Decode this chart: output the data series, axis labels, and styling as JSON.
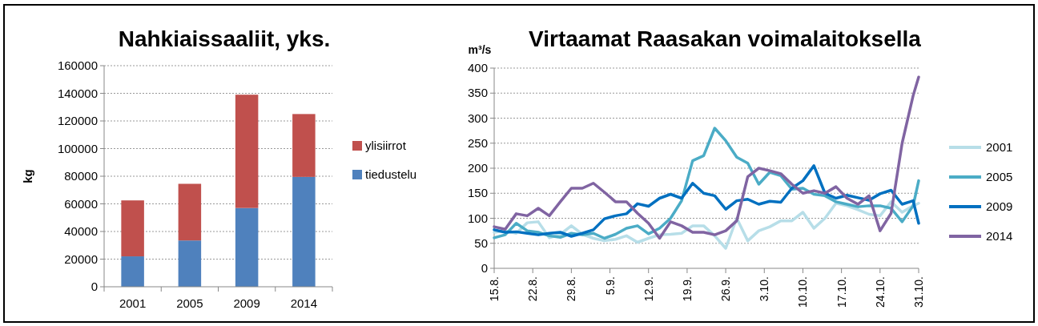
{
  "chart_data": [
    {
      "type": "bar",
      "title": "Nahkiaissaaliit, yks.",
      "ylabel": "kg",
      "categories": [
        "2001",
        "2005",
        "2009",
        "2014"
      ],
      "stacked": true,
      "series": [
        {
          "name": "tiedustelu",
          "color": "#4f81bd",
          "values": [
            22000,
            33500,
            57000,
            79500
          ]
        },
        {
          "name": "ylisiirrot",
          "color": "#c0504d",
          "values": [
            40500,
            41000,
            82000,
            45500
          ]
        }
      ],
      "ylim": [
        0,
        160000
      ],
      "yticks": [
        0,
        20000,
        40000,
        60000,
        80000,
        100000,
        120000,
        140000,
        160000
      ],
      "grid": "y",
      "legend": "right"
    },
    {
      "type": "line",
      "title": "Virtaamat Raasakan voimalaitoksella",
      "ylabel": "m³/s",
      "x": [
        "--08-15",
        "--08-17",
        "--08-19",
        "--08-21",
        "--08-23",
        "--08-25",
        "--08-27",
        "--08-29",
        "--08-31",
        "--09-02",
        "--09-04",
        "--09-06",
        "--09-08",
        "--09-10",
        "--09-12",
        "--09-14",
        "--09-16",
        "--09-18",
        "--09-20",
        "--09-22",
        "--09-24",
        "--09-26",
        "--09-28",
        "--09-30",
        "--10-02",
        "--10-04",
        "--10-06",
        "--10-08",
        "--10-10",
        "--10-12",
        "--10-14",
        "--10-16",
        "--10-18",
        "--10-20",
        "--10-22",
        "--10-24",
        "--10-26",
        "--10-28",
        "--10-30",
        "--10-31"
      ],
      "series": [
        {
          "name": "2001",
          "color": "#b7dee8",
          "values": [
            72,
            75,
            70,
            91,
            93,
            61,
            68,
            85,
            68,
            60,
            55,
            58,
            65,
            52,
            60,
            67,
            68,
            70,
            85,
            85,
            65,
            40,
            100,
            55,
            75,
            83,
            95,
            95,
            112,
            80,
            100,
            130,
            125,
            117,
            108,
            105,
            133,
            112,
            125,
            130
          ]
        },
        {
          "name": "2005",
          "color": "#4bacc6",
          "values": [
            61,
            67,
            90,
            75,
            72,
            65,
            62,
            70,
            67,
            70,
            60,
            68,
            80,
            85,
            69,
            80,
            100,
            135,
            215,
            225,
            280,
            255,
            222,
            210,
            168,
            192,
            185,
            158,
            160,
            148,
            145,
            133,
            128,
            123,
            125,
            125,
            120,
            93,
            125,
            175
          ]
        },
        {
          "name": "2009",
          "color": "#0070c0",
          "values": [
            77,
            72,
            73,
            70,
            67,
            70,
            72,
            64,
            70,
            77,
            99,
            105,
            109,
            129,
            124,
            140,
            148,
            140,
            170,
            150,
            145,
            118,
            135,
            138,
            128,
            134,
            132,
            160,
            175,
            205,
            150,
            140,
            146,
            141,
            136,
            149,
            156,
            128,
            135,
            90
          ]
        },
        {
          "name": "2014",
          "color": "#8064a2",
          "values": [
            83,
            78,
            109,
            105,
            120,
            105,
            133,
            160,
            160,
            170,
            152,
            133,
            133,
            110,
            90,
            60,
            93,
            85,
            72,
            72,
            67,
            75,
            95,
            183,
            200,
            195,
            189,
            168,
            150,
            155,
            150,
            163,
            140,
            128,
            145,
            75,
            110,
            250,
            345,
            382
          ]
        }
      ],
      "xlim": [
        "--08-15",
        "--10-31"
      ],
      "xticks": [
        {
          "value": "--08-15",
          "label": "15.8."
        },
        {
          "value": "--08-22",
          "label": "22.8."
        },
        {
          "value": "--08-29",
          "label": "29.8."
        },
        {
          "value": "--09-05",
          "label": "5.9."
        },
        {
          "value": "--09-12",
          "label": "12.9."
        },
        {
          "value": "--09-19",
          "label": "19.9."
        },
        {
          "value": "--09-26",
          "label": "26.9."
        },
        {
          "value": "--10-03",
          "label": "3.10."
        },
        {
          "value": "--10-10",
          "label": "10.10."
        },
        {
          "value": "--10-17",
          "label": "17.10."
        },
        {
          "value": "--10-24",
          "label": "24.10."
        },
        {
          "value": "--10-31",
          "label": "31.10."
        }
      ],
      "ylim": [
        0,
        400
      ],
      "yticks": [
        0,
        50,
        100,
        150,
        200,
        250,
        300,
        350,
        400
      ],
      "grid": "y",
      "legend": "right"
    }
  ]
}
